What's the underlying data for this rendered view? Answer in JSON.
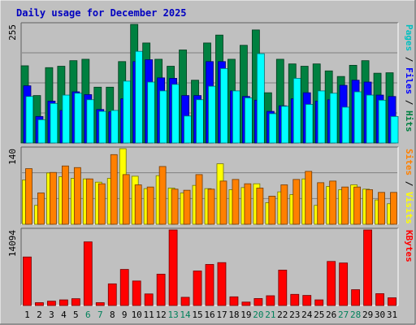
{
  "chart_data": {
    "type": "bar",
    "title": "Daily usage for December 2025",
    "x": [
      "1",
      "2",
      "3",
      "4",
      "5",
      "6",
      "7",
      "8",
      "9",
      "10",
      "11",
      "12",
      "13",
      "14",
      "15",
      "16",
      "17",
      "18",
      "19",
      "20",
      "21",
      "22",
      "23",
      "24",
      "25",
      "26",
      "27",
      "28",
      "29",
      "30",
      "31"
    ],
    "weekend_days": [
      "6",
      "7",
      "13",
      "14",
      "20",
      "21",
      "27",
      "28"
    ],
    "panels": [
      {
        "name": "pages-files-hits",
        "max_label": "255",
        "ylim": [
          0,
          255
        ],
        "series": [
          {
            "name": "Hits",
            "color": "#008040",
            "values": [
              166,
              102,
              162,
              165,
              177,
              180,
              120,
              120,
              175,
              255,
              215,
              180,
              165,
              200,
              135,
              215,
              232,
              180,
              210,
              243,
              108,
              180,
              170,
              165,
              170,
              155,
              143,
              167,
              177,
              150,
              151
            ]
          },
          {
            "name": "Files",
            "color": "#0000ff",
            "values": [
              123,
              57,
              90,
              70,
              110,
              104,
              72,
              67,
              95,
              175,
              179,
              140,
              139,
              102,
              102,
              175,
              175,
              112,
              100,
              92,
              68,
              80,
              95,
              108,
              90,
              93,
              124,
              135,
              131,
              103,
              100
            ]
          },
          {
            "name": "Pages",
            "color": "#00ffff",
            "values": [
              100,
              50,
              85,
              103,
              107,
              93,
              68,
              70,
              133,
              197,
              131,
              112,
              126,
              58,
              93,
              122,
              160,
              112,
              97,
              192,
              63,
              79,
              139,
              83,
              112,
              107,
              77,
              110,
              103,
              92,
              57
            ]
          }
        ],
        "axis_label_parts": [
          {
            "text": "Pages",
            "color": "#00c0c0"
          },
          {
            "text": " / ",
            "color": "#000000"
          },
          {
            "text": "Files",
            "color": "#0000ff"
          },
          {
            "text": " / ",
            "color": "#000000"
          },
          {
            "text": "Hits",
            "color": "#008040"
          }
        ]
      },
      {
        "name": "visits-sites",
        "max_label": "140",
        "ylim": [
          0,
          140
        ],
        "series": [
          {
            "name": "Visits",
            "color": "#ffff00",
            "values": [
              82,
              35,
              95,
              88,
              85,
              84,
              78,
              85,
              140,
              89,
              66,
              90,
              67,
              58,
              72,
              66,
              112,
              64,
              68,
              75,
              40,
              60,
              55,
              84,
              35,
              70,
              64,
              73,
              65,
              45,
              38
            ]
          },
          {
            "name": "Sites",
            "color": "#ff8000",
            "values": [
              103,
              58,
              96,
              108,
              105,
              84,
              75,
              129,
              92,
              73,
              69,
              107,
              65,
              63,
              92,
              65,
              80,
              83,
              75,
              67,
              52,
              73,
              83,
              98,
              77,
              80,
              69,
              69,
              64,
              59,
              59
            ]
          }
        ],
        "axis_label_parts": [
          {
            "text": "Sites",
            "color": "#ff8000"
          },
          {
            "text": " / ",
            "color": "#000000"
          },
          {
            "text": "Visits",
            "color": "#ffff00"
          }
        ]
      },
      {
        "name": "kbytes",
        "max_label": "14094",
        "ylim": [
          0,
          14094
        ],
        "series": [
          {
            "name": "KBytes",
            "color": "#ff0000",
            "values": [
              9050,
              530,
              810,
              1050,
              1270,
              11870,
              530,
              4040,
              6730,
              4570,
              2160,
              5850,
              14094,
              1530,
              6440,
              7660,
              8000,
              1620,
              640,
              1300,
              1820,
              6600,
              2080,
              1880,
              1050,
              8220,
              7930,
              2950,
              14094,
              2210,
              1440
            ]
          }
        ],
        "axis_label_parts": [
          {
            "text": "KBytes",
            "color": "#ff0000"
          }
        ]
      }
    ]
  }
}
